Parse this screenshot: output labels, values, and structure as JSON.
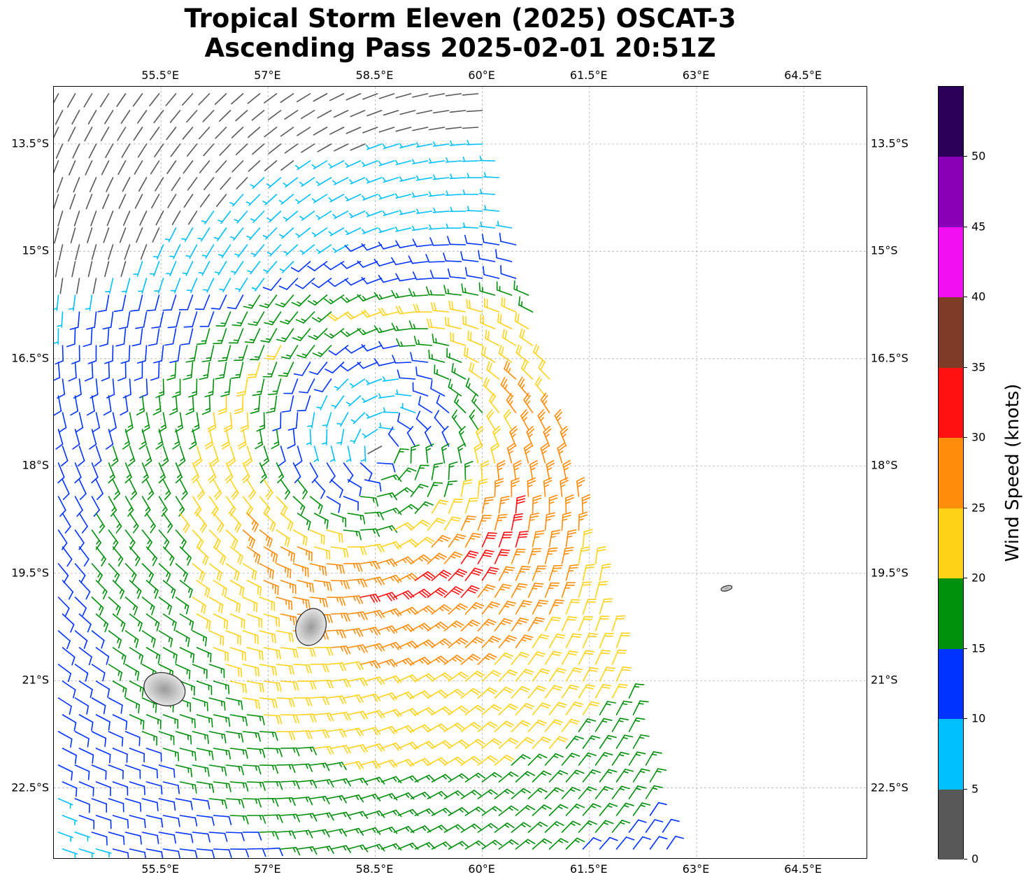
{
  "title": {
    "line1": "Tropical Storm Eleven (2025) OSCAT-3",
    "line2": "Ascending Pass 2025-02-01 20:51Z"
  },
  "map": {
    "lon_range": [
      54.0,
      65.4
    ],
    "lat_range": [
      -23.5,
      -12.7
    ],
    "lon_ticks": [
      "55.5°E",
      "57°E",
      "58.5°E",
      "60°E",
      "61.5°E",
      "63°E",
      "64.5°E"
    ],
    "lon_tick_values": [
      55.5,
      57.0,
      58.5,
      60.0,
      61.5,
      63.0,
      64.5
    ],
    "lat_ticks": [
      "13.5°S",
      "15°S",
      "16.5°S",
      "18°S",
      "19.5°S",
      "21°S",
      "22.5°S"
    ],
    "lat_tick_values": [
      -13.5,
      -15.0,
      -16.5,
      -18.0,
      -19.5,
      -21.0,
      -22.5
    ],
    "gridlines": true,
    "storm_center": {
      "lon": 58.6,
      "lat": -17.8
    },
    "swath_east_edge": {
      "top": {
        "lon": 60.0,
        "lat": -12.7
      },
      "bottom": {
        "lon": 62.7,
        "lat": -23.5
      }
    },
    "land_features": [
      "Mauritius",
      "Réunion",
      "Rodrigues"
    ]
  },
  "colorbar": {
    "title": "Wind Speed (knots)",
    "min": 0,
    "max": 55,
    "ticks": [
      "0",
      "5",
      "10",
      "15",
      "20",
      "25",
      "30",
      "35",
      "40",
      "45",
      "50"
    ],
    "tick_values": [
      0,
      5,
      10,
      15,
      20,
      25,
      30,
      35,
      40,
      45,
      50
    ],
    "segments": [
      {
        "from": 0,
        "to": 5,
        "color": "#585858"
      },
      {
        "from": 5,
        "to": 10,
        "color": "#00bfff"
      },
      {
        "from": 10,
        "to": 15,
        "color": "#0033ff"
      },
      {
        "from": 15,
        "to": 20,
        "color": "#00900a"
      },
      {
        "from": 20,
        "to": 25,
        "color": "#ffd21a"
      },
      {
        "from": 25,
        "to": 30,
        "color": "#ff8c0a"
      },
      {
        "from": 30,
        "to": 35,
        "color": "#ff1010"
      },
      {
        "from": 35,
        "to": 40,
        "color": "#7d3b28"
      },
      {
        "from": 40,
        "to": 45,
        "color": "#f00ff0"
      },
      {
        "from": 45,
        "to": 50,
        "color": "#8800b8"
      },
      {
        "from": 50,
        "to": 55,
        "color": "#2a005a"
      }
    ]
  }
}
